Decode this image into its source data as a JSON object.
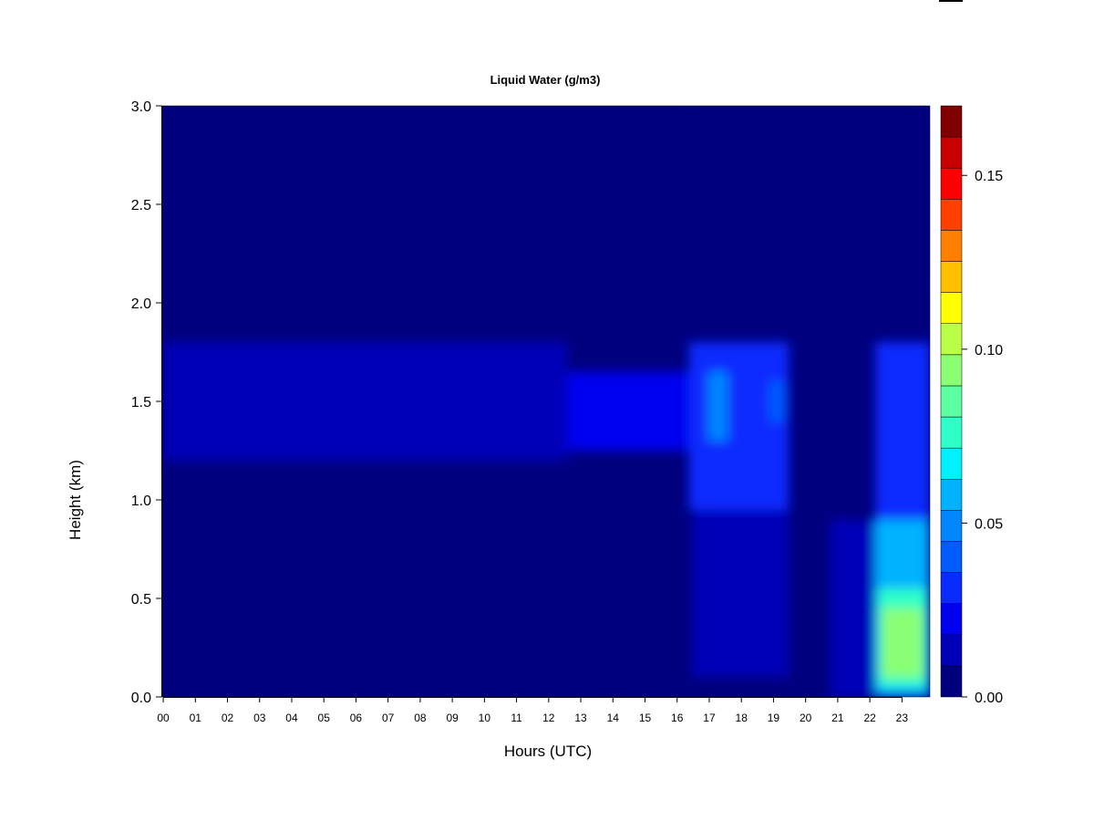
{
  "chart_data": {
    "type": "heatmap",
    "title": "Liquid Water (g/m3)",
    "xlabel": "Hours (UTC)",
    "ylabel": "Height (km)",
    "xlim": [
      0,
      23.9
    ],
    "ylim": [
      0.0,
      3.0
    ],
    "x_ticks": [
      "00",
      "01",
      "02",
      "03",
      "04",
      "05",
      "06",
      "07",
      "08",
      "09",
      "10",
      "11",
      "12",
      "13",
      "14",
      "15",
      "16",
      "17",
      "18",
      "19",
      "20",
      "21",
      "22",
      "23"
    ],
    "y_ticks": [
      "0.0",
      "0.5",
      "1.0",
      "1.5",
      "2.0",
      "2.5",
      "3.0"
    ],
    "colorbar": {
      "range": [
        0.0,
        0.17
      ],
      "tick_labels": [
        "0.00",
        "0.05",
        "0.10",
        "0.15"
      ],
      "tick_values": [
        0.0,
        0.05,
        0.1,
        0.15
      ],
      "colors": [
        "#00007f",
        "#0000b8",
        "#0000f0",
        "#0a2bff",
        "#005cff",
        "#0086ff",
        "#00b2ff",
        "#00f0ff",
        "#2effc8",
        "#5effa0",
        "#8aff74",
        "#b8ff46",
        "#ffff00",
        "#ffc000",
        "#ff8000",
        "#ff4000",
        "#ff0000",
        "#c80000",
        "#800000"
      ]
    },
    "regions": [
      {
        "x": [
          0,
          16.4
        ],
        "y": [
          2.05,
          3.0
        ],
        "value": 0.003
      },
      {
        "x": [
          16.4,
          23.9
        ],
        "y": [
          2.05,
          3.0
        ],
        "value": 0.008
      },
      {
        "x": [
          0,
          12.6
        ],
        "y": [
          1.2,
          1.8
        ],
        "value": 0.015
      },
      {
        "x": [
          12.6,
          16.4
        ],
        "y": [
          1.25,
          1.65
        ],
        "value": 0.022
      },
      {
        "x": [
          16.4,
          19.5
        ],
        "y": [
          0.95,
          1.8
        ],
        "value": 0.028
      },
      {
        "x": [
          17.0,
          17.6
        ],
        "y": [
          1.3,
          1.65
        ],
        "value": 0.045
      },
      {
        "x": [
          18.9,
          19.4
        ],
        "y": [
          1.4,
          1.6
        ],
        "value": 0.04
      },
      {
        "x": [
          16.5,
          19.5
        ],
        "y": [
          0.1,
          0.95
        ],
        "value": 0.013
      },
      {
        "x": [
          20.8,
          22.2
        ],
        "y": [
          0.0,
          0.9
        ],
        "value": 0.015
      },
      {
        "x": [
          22.2,
          23.9
        ],
        "y": [
          0.9,
          1.8
        ],
        "value": 0.03
      },
      {
        "x": [
          22.2,
          23.9
        ],
        "y": [
          0.0,
          0.9
        ],
        "value": 0.055
      },
      {
        "x": [
          22.3,
          23.8
        ],
        "y": [
          0.05,
          0.55
        ],
        "value": 0.075
      },
      {
        "x": [
          22.4,
          23.7
        ],
        "y": [
          0.1,
          0.45
        ],
        "value": 0.09
      }
    ]
  }
}
